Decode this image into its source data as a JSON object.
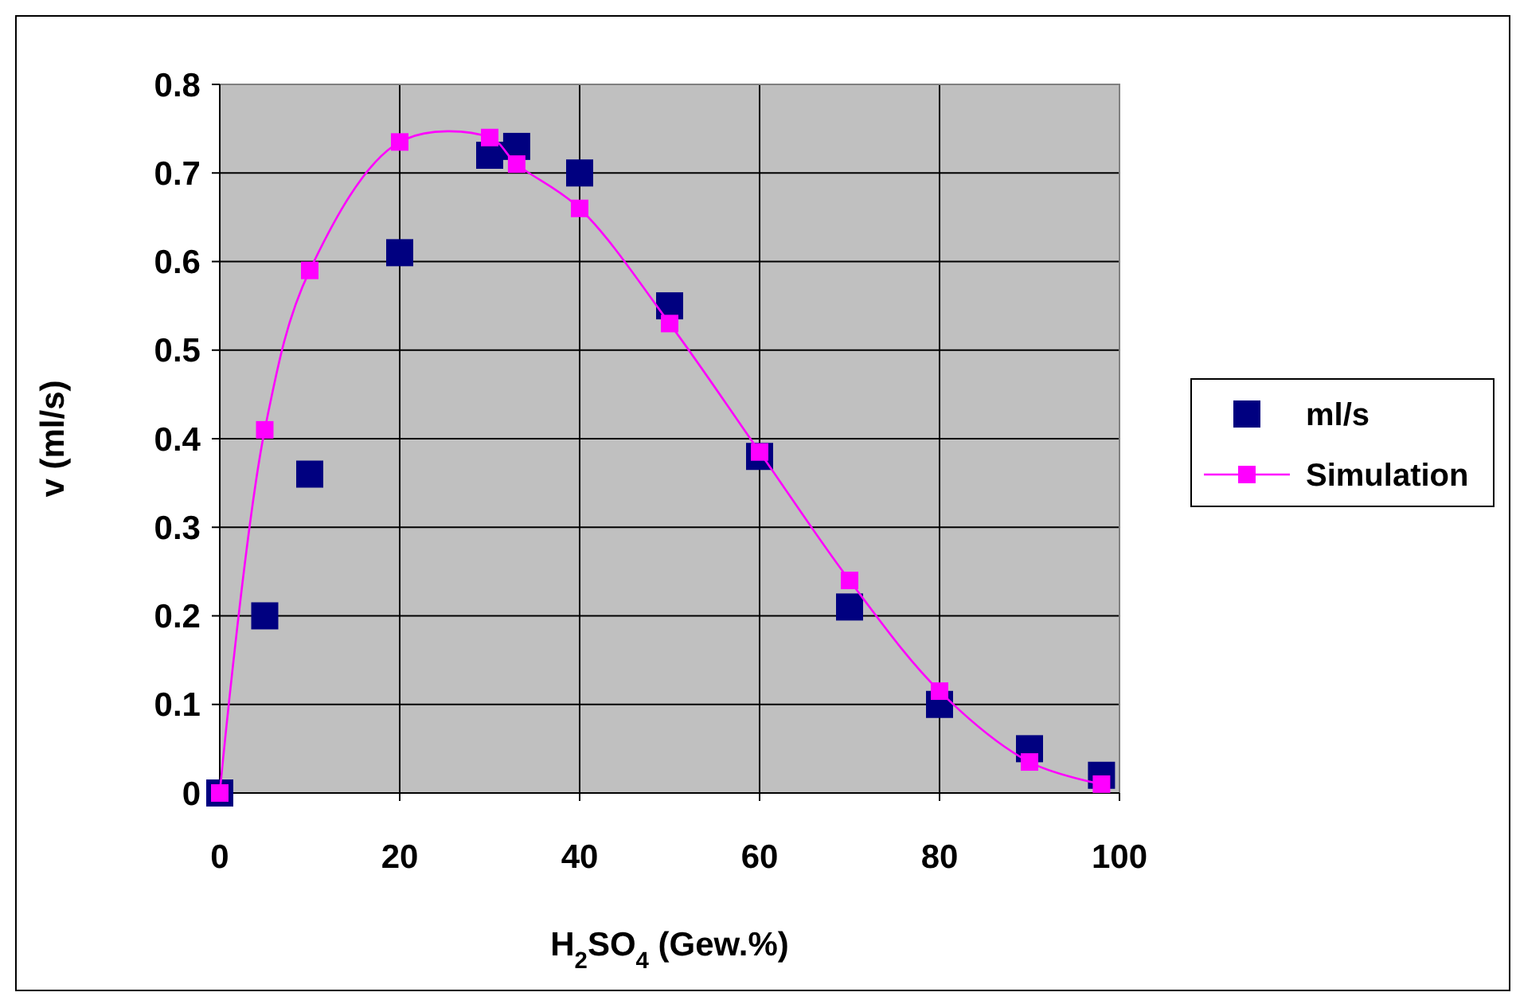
{
  "chart_data": {
    "type": "scatter",
    "xlabel": "H$_{2}$SO$_{4}$ (Gew.%)",
    "ylabel": "v (ml/s)",
    "x": [
      0,
      5,
      10,
      20,
      30,
      33,
      40,
      50,
      60,
      70,
      80,
      90,
      98
    ],
    "series": [
      {
        "name": "ml/s",
        "marker": "square",
        "color": "#000080",
        "values": [
          0,
          0.2,
          0.36,
          0.61,
          0.72,
          0.73,
          0.7,
          0.55,
          0.38,
          0.21,
          0.1,
          0.05,
          0.02
        ]
      },
      {
        "name": "Simulation",
        "type": "line",
        "marker": "square",
        "line_style": "solid",
        "color": "#ff00ff",
        "values": [
          0,
          0.41,
          0.59,
          0.735,
          0.74,
          0.71,
          0.66,
          0.53,
          0.385,
          0.24,
          0.115,
          0.035,
          0.01
        ]
      }
    ],
    "xlim": [
      0,
      100
    ],
    "xticks": [
      0,
      20,
      40,
      60,
      80,
      100
    ],
    "ylim": [
      0,
      0.8
    ],
    "yticks": [
      0,
      0.1,
      0.2,
      0.3,
      0.4,
      0.5,
      0.6,
      0.7,
      0.8
    ],
    "grid": true,
    "legend": "right"
  }
}
